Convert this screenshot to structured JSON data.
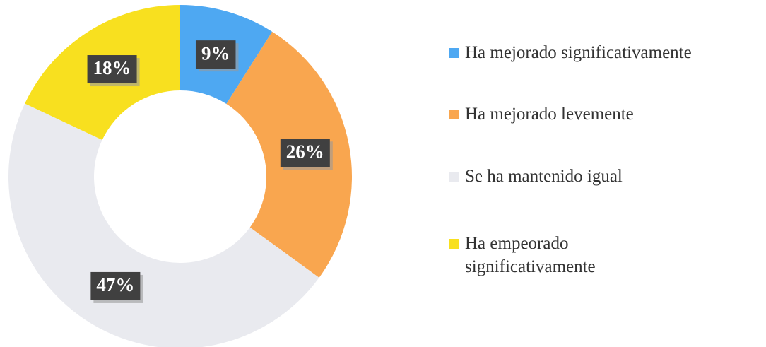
{
  "chart_data": {
    "type": "donut",
    "categories": [
      "Ha mejorado significativamente",
      "Ha mejorado levemente",
      "Se ha mantenido igual",
      "Ha empeorado significativamente"
    ],
    "values": [
      9,
      26,
      47,
      18
    ],
    "value_labels": [
      "9%",
      "26%",
      "47%",
      "18%"
    ],
    "colors": [
      "#4ea8f2",
      "#f9a64f",
      "#e9eaef",
      "#f8e01f"
    ],
    "legend": "right"
  }
}
